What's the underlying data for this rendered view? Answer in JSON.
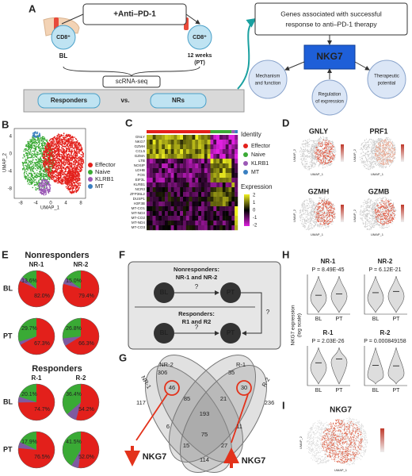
{
  "panel_labels": [
    "A",
    "B",
    "C",
    "D",
    "E",
    "F",
    "G",
    "H",
    "I"
  ],
  "a": {
    "treatment": "+Anti–PD-1",
    "cell": "CD8⁺",
    "baseline": "BL",
    "post_lines": [
      "12 weeks",
      "(PT)"
    ],
    "method": "scRNA-seq",
    "responders": "Responders",
    "versus": "vs.",
    "nonresponders": "NRs",
    "goal_lines": [
      "Genes associated with successful",
      "response to anti–PD-1 therapy"
    ],
    "gene": "NKG7",
    "topics": [
      [
        "Mechanism",
        "and function"
      ],
      [
        "Regulation",
        "of expression"
      ],
      [
        "Therapeutic",
        "potential"
      ]
    ]
  },
  "b": {
    "x_label": "UMAP_1",
    "y_label": "UMAP_2",
    "x_ticks": [
      -8,
      -4,
      0,
      4,
      8
    ],
    "y_ticks": [
      4,
      0,
      -4,
      -8
    ],
    "legend": [
      {
        "name": "Effector",
        "color": "#e3201b"
      },
      {
        "name": "Naive",
        "color": "#3aaa35"
      },
      {
        "name": "KLRB1",
        "color": "#9b59b6"
      },
      {
        "name": "MT",
        "color": "#3a7fc1"
      }
    ]
  },
  "c": {
    "genes": [
      "GNLY",
      "NKG7",
      "GZMH",
      "CCL5",
      "GZMA",
      "LTB",
      "NOSIP",
      "LDHB",
      "FOS",
      "EIF3L",
      "KLRB1",
      "NCR3",
      "ZFP36L2",
      "DUSP1",
      "H3F3B",
      "MT-CO1",
      "MT-ND3",
      "MT-CO2",
      "MT-ND4",
      "MT-CO3"
    ],
    "identity_title": "Identity",
    "expression_title": "Expression",
    "expression_ticks": [
      2,
      1,
      0,
      -1,
      -2
    ]
  },
  "d": {
    "genes": [
      "GNLY",
      "PRF1",
      "GZMH",
      "GZMB"
    ],
    "x_label": "UMAP_1",
    "y_label": "UMAP_2"
  },
  "e": {
    "colors": [
      "#3aaa35",
      "#e3201b"
    ],
    "groups": [
      {
        "title": "Nonresponders",
        "samples": [
          "NR-1",
          "NR-2"
        ],
        "rows": [
          {
            "time": "BL",
            "pies": [
              {
                "values": [
                  13.6,
                  82.0
                ],
                "value_labels": [
                  "13.6%",
                  "82.0%"
                ]
              },
              {
                "values": [
                  15.0,
                  79.4
                ],
                "value_labels": [
                  "15.0%",
                  "79.4%"
                ]
              }
            ]
          },
          {
            "time": "PT",
            "pies": [
              {
                "values": [
                  29.7,
                  67.3
                ],
                "value_labels": [
                  "29.7%",
                  "67.3%"
                ]
              },
              {
                "values": [
                  26.8,
                  66.3
                ],
                "value_labels": [
                  "26.8%",
                  "66.3%"
                ]
              }
            ]
          }
        ]
      },
      {
        "title": "Responders",
        "samples": [
          "R-1",
          "R-2"
        ],
        "rows": [
          {
            "time": "BL",
            "pies": [
              {
                "values": [
                  20.1,
                  74.7
                ],
                "value_labels": [
                  "20.1%",
                  "74.7%"
                ]
              },
              {
                "values": [
                  36.4,
                  54.2
                ],
                "value_labels": [
                  "36.4%",
                  "54.2%"
                ]
              }
            ]
          },
          {
            "time": "PT",
            "pies": [
              {
                "values": [
                  17.9,
                  76.5
                ],
                "value_labels": [
                  "17.9%",
                  "76.5%"
                ]
              },
              {
                "values": [
                  41.5,
                  52.0
                ],
                "value_labels": [
                  "41.5%",
                  "52.0%"
                ]
              }
            ]
          }
        ]
      }
    ]
  },
  "f": {
    "nonresponders_lines": [
      "Nonresponders:",
      "NR-1 and NR-2"
    ],
    "responders_lines": [
      "Responders:",
      "R1 and R2"
    ],
    "baseline": "BL",
    "post": "PT",
    "unknown": "?"
  },
  "g": {
    "sets": [
      "NR-1",
      "NR-2",
      "R-1",
      "R-2"
    ],
    "counts": [
      306,
      35,
      46,
      30,
      117,
      85,
      21,
      236,
      193,
      6,
      75,
      11,
      15,
      27,
      114
    ],
    "gene": "NKG7"
  },
  "h": {
    "y_label_lines": [
      "NKG7 expression",
      "(log scale)"
    ],
    "x_ticks": [
      "BL",
      "PT"
    ],
    "plots": [
      {
        "title": "NR-1",
        "p": "P = 8.49E-45"
      },
      {
        "title": "NR-2",
        "p": "P = 6.12E-21"
      },
      {
        "title": "R-1",
        "p": "P = 2.03E-26"
      },
      {
        "title": "R-2",
        "p": "P = 0.000849158"
      }
    ]
  },
  "i": {
    "gene": "NKG7"
  }
}
